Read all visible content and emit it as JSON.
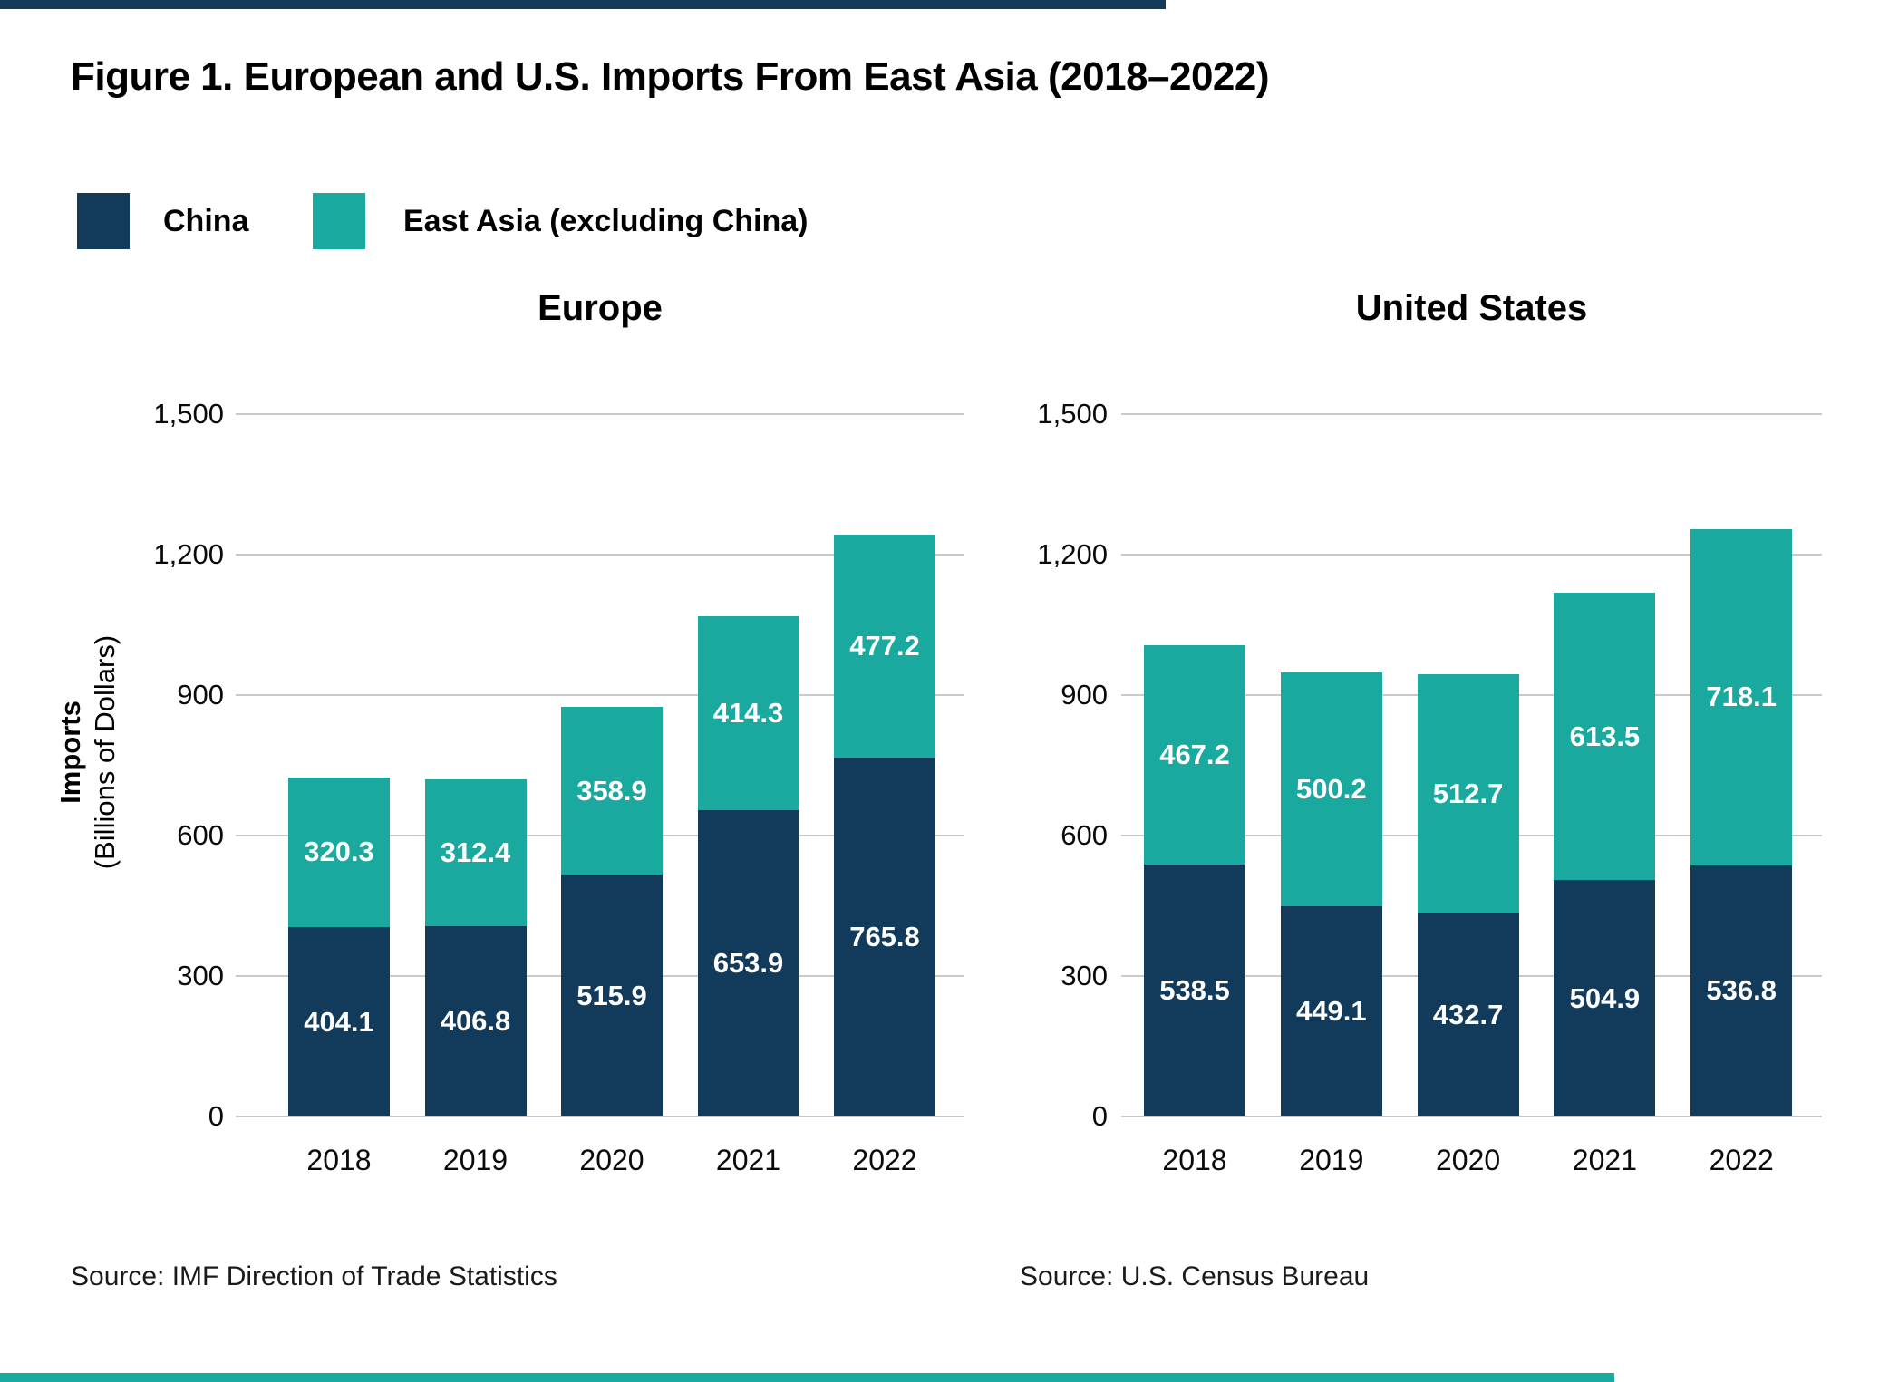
{
  "title": "Figure 1. European and U.S. Imports From East Asia (2018–2022)",
  "colors": {
    "china": "#123a5b",
    "east_asia": "#1aa99e",
    "gridline": "#c9c9c9"
  },
  "legend": {
    "items": [
      {
        "label": "China",
        "color_key": "china"
      },
      {
        "label": "East Asia (excluding China)",
        "color_key": "east_asia"
      }
    ]
  },
  "y_axis": {
    "label_line1": "Imports",
    "label_line2": "(Billions of Dollars)",
    "ticks": [
      {
        "value": 0,
        "label": "0"
      },
      {
        "value": 300,
        "label": "300"
      },
      {
        "value": 600,
        "label": "600"
      },
      {
        "value": 900,
        "label": "900"
      },
      {
        "value": 1200,
        "label": "1,200"
      },
      {
        "value": 1500,
        "label": "1,500"
      }
    ]
  },
  "chart_data": [
    {
      "type": "bar",
      "stacked": true,
      "title": "Europe",
      "categories": [
        "2018",
        "2019",
        "2020",
        "2021",
        "2022"
      ],
      "series": [
        {
          "name": "China",
          "values": [
            404.1,
            406.8,
            515.9,
            653.9,
            765.8
          ]
        },
        {
          "name": "East Asia (excluding China)",
          "values": [
            320.3,
            312.4,
            358.9,
            414.3,
            477.2
          ]
        }
      ],
      "xlabel": "",
      "ylabel": "Imports (Billions of Dollars)",
      "ylim": [
        0,
        1500
      ],
      "grid": true,
      "legend_position": "top-left",
      "source": "Source: IMF Direction of Trade Statistics"
    },
    {
      "type": "bar",
      "stacked": true,
      "title": "United States",
      "categories": [
        "2018",
        "2019",
        "2020",
        "2021",
        "2022"
      ],
      "series": [
        {
          "name": "China",
          "values": [
            538.5,
            449.1,
            432.7,
            504.9,
            536.8
          ]
        },
        {
          "name": "East Asia (excluding China)",
          "values": [
            467.2,
            500.2,
            512.7,
            613.5,
            718.1
          ]
        }
      ],
      "xlabel": "",
      "ylabel": "Imports (Billions of Dollars)",
      "ylim": [
        0,
        1500
      ],
      "grid": true,
      "legend_position": "top-left",
      "source": "Source: U.S. Census Bureau"
    }
  ]
}
